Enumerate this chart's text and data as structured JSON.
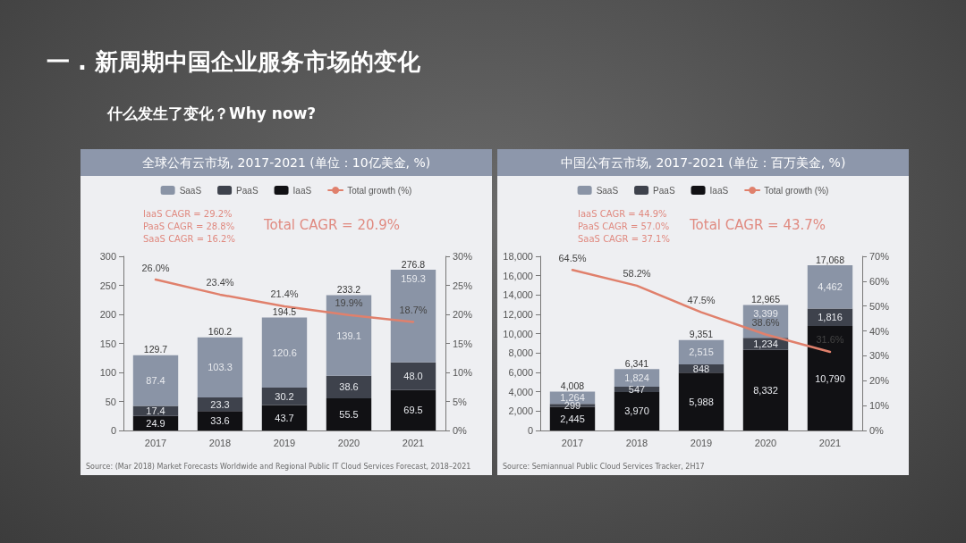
{
  "chart_data": [
    {
      "type": "bar",
      "title": "全球公有云市场, 2017-2021 (单位：10亿美金, %)",
      "stacked": true,
      "legend": "top",
      "marker": "none",
      "categories": [
        "2017",
        "2018",
        "2019",
        "2020",
        "2021"
      ],
      "ylim": [
        0,
        300
      ],
      "yticks": [
        0,
        50,
        100,
        150,
        200,
        250,
        300
      ],
      "y2lim": [
        0,
        30
      ],
      "y2ticks": [
        {
          "value": 0,
          "label": "0%"
        },
        {
          "value": 5,
          "label": "5%"
        },
        {
          "value": 10,
          "label": "10%"
        },
        {
          "value": 15,
          "label": "15%"
        },
        {
          "value": 20,
          "label": "20%"
        },
        {
          "value": 25,
          "label": "25%"
        },
        {
          "value": 30,
          "label": "30%"
        }
      ],
      "series": [
        {
          "name": "IaaS",
          "color": "#111114",
          "values": [
            24.9,
            33.6,
            43.7,
            55.5,
            69.5
          ],
          "value_labels": [
            "24.9",
            "33.6",
            "43.7",
            "55.5",
            "69.5"
          ]
        },
        {
          "name": "PaaS",
          "color": "#3e424c",
          "values": [
            17.4,
            23.3,
            30.2,
            38.6,
            48.0
          ],
          "value_labels": [
            "17.4",
            "23.3",
            "30.2",
            "38.6",
            "48.0"
          ]
        },
        {
          "name": "SaaS",
          "color": "#8a94a6",
          "values": [
            87.4,
            103.3,
            120.6,
            139.1,
            159.3
          ],
          "value_labels": [
            "87.4",
            "103.3",
            "120.6",
            "139.1",
            "159.3"
          ]
        },
        {
          "name": "Total growth (%)",
          "type": "line",
          "axis": "y2",
          "color": "#e0806c",
          "line_style": "solid",
          "values": [
            26.0,
            23.4,
            21.4,
            19.9,
            18.7
          ],
          "value_labels": [
            "26.0%",
            "23.4%",
            "21.4%",
            "19.9%",
            "18.7%"
          ]
        }
      ],
      "totals": [
        "129.7",
        "160.2",
        "194.5",
        "233.2",
        "276.8"
      ],
      "annotations": [
        "一 . 新周期中国企业服务市场的变化",
        "什么发生了变化？Why now?",
        "IaaS CAGR = 29.2%",
        "PaaS CAGR = 28.8%",
        "SaaS CAGR = 16.2%",
        "Total CAGR = 20.9%",
        "Source: (Mar 2018) Market Forecasts Worldwide and Regional Public IT Cloud Services Forecast, 2018–2021"
      ]
    },
    {
      "type": "bar",
      "title": "中国公有云市场, 2017-2021 (单位：百万美金, %)",
      "stacked": true,
      "legend": "top",
      "marker": "none",
      "categories": [
        "2017",
        "2018",
        "2019",
        "2020",
        "2021"
      ],
      "ylim": [
        0,
        18000
      ],
      "yticks": [
        0,
        {
          "value": 2000,
          "label": "2,000"
        },
        {
          "value": 4000,
          "label": "4,000"
        },
        {
          "value": 6000,
          "label": "6,000"
        },
        {
          "value": 8000,
          "label": "8,000"
        },
        {
          "value": 10000,
          "label": "10,000"
        },
        {
          "value": 12000,
          "label": "12,000"
        },
        {
          "value": 14000,
          "label": "14,000"
        },
        {
          "value": 16000,
          "label": "16,000"
        },
        {
          "value": 18000,
          "label": "18,000"
        }
      ],
      "y2lim": [
        0,
        70
      ],
      "y2ticks": [
        {
          "value": 0,
          "label": "0%"
        },
        {
          "value": 10,
          "label": "10%"
        },
        {
          "value": 20,
          "label": "20%"
        },
        {
          "value": 30,
          "label": "30%"
        },
        {
          "value": 40,
          "label": "40%"
        },
        {
          "value": 50,
          "label": "50%"
        },
        {
          "value": 60,
          "label": "60%"
        },
        {
          "value": 70,
          "label": "70%"
        }
      ],
      "series": [
        {
          "name": "IaaS",
          "color": "#111114",
          "values": [
            2445,
            3970,
            5988,
            8332,
            10790
          ],
          "value_labels": [
            "2,445",
            "3,970",
            "5,988",
            "8,332",
            "10,790"
          ]
        },
        {
          "name": "PaaS",
          "color": "#3e424c",
          "values": [
            299,
            547,
            848,
            1234,
            1816
          ],
          "value_labels": [
            "299",
            "547",
            "848",
            "1,234",
            "1,816"
          ]
        },
        {
          "name": "SaaS",
          "color": "#8a94a6",
          "values": [
            1264,
            1824,
            2515,
            3399,
            4462
          ],
          "value_labels": [
            "1,264",
            "1,824",
            "2,515",
            "3,399",
            "4,462"
          ]
        },
        {
          "name": "Total growth (%)",
          "type": "line",
          "axis": "y2",
          "color": "#e0806c",
          "line_style": "solid",
          "values": [
            64.5,
            58.2,
            47.5,
            38.6,
            31.6
          ],
          "value_labels": [
            "64.5%",
            "58.2%",
            "47.5%",
            "38.6%",
            "31.6%"
          ]
        }
      ],
      "totals": [
        "4,008",
        "6,341",
        "9,351",
        "12,965",
        "17,068"
      ],
      "annotations": [
        "IaaS CAGR = 44.9%",
        "PaaS CAGR = 57.0%",
        "SaaS CAGR = 37.1%",
        "Total CAGR = 43.7%",
        "Source: Semiannual Public Cloud Services Tracker, 2H17"
      ]
    }
  ]
}
